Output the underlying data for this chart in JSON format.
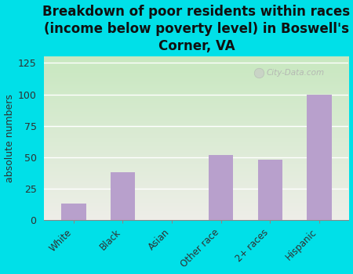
{
  "title": "Breakdown of poor residents within races\n(income below poverty level) in Boswell's\nCorner, VA",
  "categories": [
    "White",
    "Black",
    "Asian",
    "Other race",
    "2+ races",
    "Hispanic"
  ],
  "values": [
    13,
    38,
    0,
    52,
    48,
    100
  ],
  "bar_color": "#b8a0cc",
  "ylabel": "absolute numbers",
  "ylim": [
    0,
    130
  ],
  "yticks": [
    0,
    25,
    50,
    75,
    100,
    125
  ],
  "background_outer": "#00e0e8",
  "background_plot_top": "#c8e8c0",
  "background_plot_bottom": "#eeeee8",
  "grid_color": "#ffffff",
  "title_fontsize": 12,
  "watermark": "City-Data.com"
}
